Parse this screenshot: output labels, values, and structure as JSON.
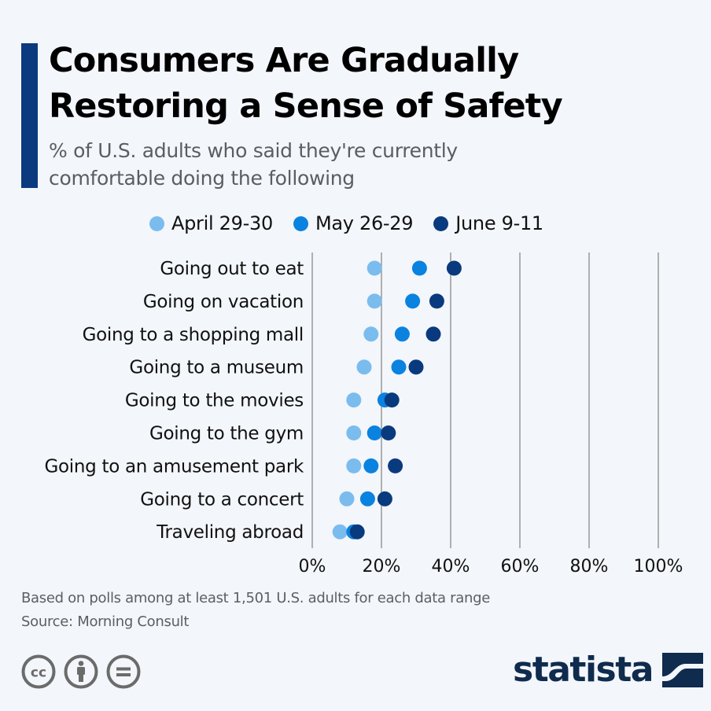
{
  "header": {
    "title_line1": "Consumers Are Gradually",
    "title_line2": "Restoring a Sense of Safety",
    "subtitle_line1": "% of U.S. adults who said they're currently",
    "subtitle_line2": "comfortable doing the following"
  },
  "colors": {
    "accent": "#0b3a7f",
    "april": "#7bbcee",
    "may": "#0a82e0",
    "june": "#0a3a7e",
    "background": "#f3f6fa",
    "grid": "#8a8a8a"
  },
  "chart_data": {
    "type": "scatter",
    "subtype": "dot-plot",
    "title": "Consumers Are Gradually Restoring a Sense of Safety",
    "subtitle": "% of U.S. adults who said they're currently comfortable doing the following",
    "xlabel": "",
    "ylabel": "",
    "xlim": [
      0,
      100
    ],
    "x_ticks": [
      0,
      20,
      40,
      60,
      80,
      100
    ],
    "x_tick_labels": [
      "0%",
      "20%",
      "40%",
      "60%",
      "80%",
      "100%"
    ],
    "grid": true,
    "legend_position": "top-center",
    "categories": [
      "Going out to eat",
      "Going on vacation",
      "Going to a shopping mall",
      "Going to a museum",
      "Going to the movies",
      "Going to the gym",
      "Going to an amusement park",
      "Going to a concert",
      "Traveling abroad"
    ],
    "series": [
      {
        "name": "April 29-30",
        "color": "#7bbcee",
        "values": [
          18,
          18,
          17,
          15,
          12,
          12,
          12,
          10,
          8
        ]
      },
      {
        "name": "May 26-29",
        "color": "#0a82e0",
        "values": [
          31,
          29,
          26,
          25,
          21,
          18,
          17,
          16,
          12
        ]
      },
      {
        "name": "June 9-11",
        "color": "#0a3a7e",
        "values": [
          41,
          36,
          35,
          30,
          23,
          22,
          24,
          21,
          13
        ]
      }
    ]
  },
  "footer": {
    "note": "Based on polls among at least 1,501 U.S. adults for each data range",
    "source": "Source: Morning Consult",
    "license_icons": [
      "cc-icon",
      "attribution-icon",
      "no-derivatives-icon"
    ],
    "brand": "statista"
  }
}
